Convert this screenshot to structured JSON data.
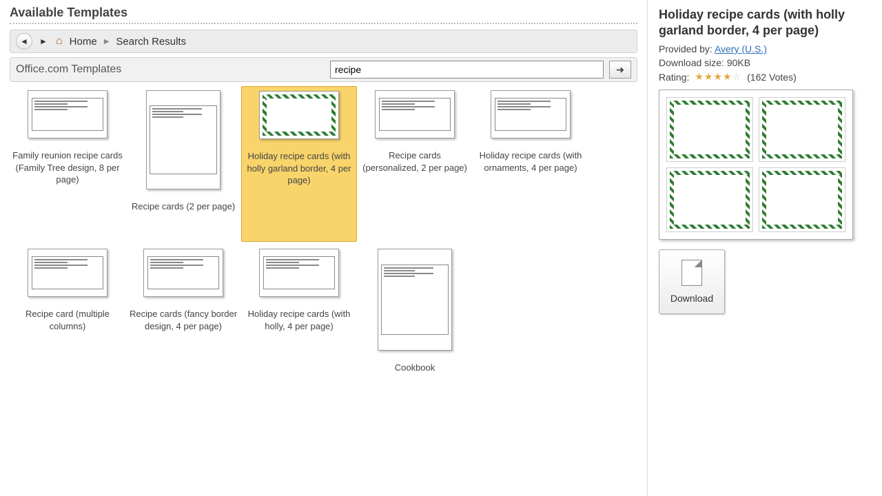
{
  "header": {
    "title": "Available Templates"
  },
  "nav": {
    "home_label": "Home",
    "search_results_label": "Search Results"
  },
  "search": {
    "label": "Office.com Templates",
    "value": "recipe"
  },
  "templates": [
    {
      "name": "Family reunion recipe cards (Family Tree design, 8 per page)",
      "shape": "landscape",
      "selected": false
    },
    {
      "name": "Recipe cards (2 per page)",
      "shape": "portrait",
      "selected": false
    },
    {
      "name": "Holiday recipe cards (with holly garland border, 4 per page)",
      "shape": "landscape",
      "selected": true,
      "holly": true
    },
    {
      "name": "Recipe cards (personalized, 2 per page)",
      "shape": "landscape",
      "selected": false
    },
    {
      "name": "Holiday recipe cards (with ornaments, 4 per page)",
      "shape": "landscape",
      "selected": false
    },
    {
      "name": "Recipe card (multiple columns)",
      "shape": "landscape",
      "selected": false
    },
    {
      "name": "Recipe cards (fancy border design, 4 per page)",
      "shape": "landscape",
      "selected": false
    },
    {
      "name": "Holiday recipe cards (with holly, 4 per page)",
      "shape": "landscape",
      "selected": false
    },
    {
      "name": "Cookbook",
      "shape": "square",
      "selected": false
    }
  ],
  "details": {
    "title": "Holiday recipe cards (with holly garland border, 4 per page)",
    "provided_by_label": "Provided by:",
    "provided_by": "Avery (U.S.)",
    "download_size_label": "Download size:",
    "download_size": "90KB",
    "rating_label": "Rating:",
    "rating_stars": 4,
    "rating_max": 5,
    "votes_text": "(162 Votes)",
    "download_label": "Download"
  },
  "colors": {
    "selection_bg": "#f8d46b",
    "selection_border": "#d9a32f",
    "star_fill": "#e8a33d",
    "link": "#2a6fbb"
  }
}
